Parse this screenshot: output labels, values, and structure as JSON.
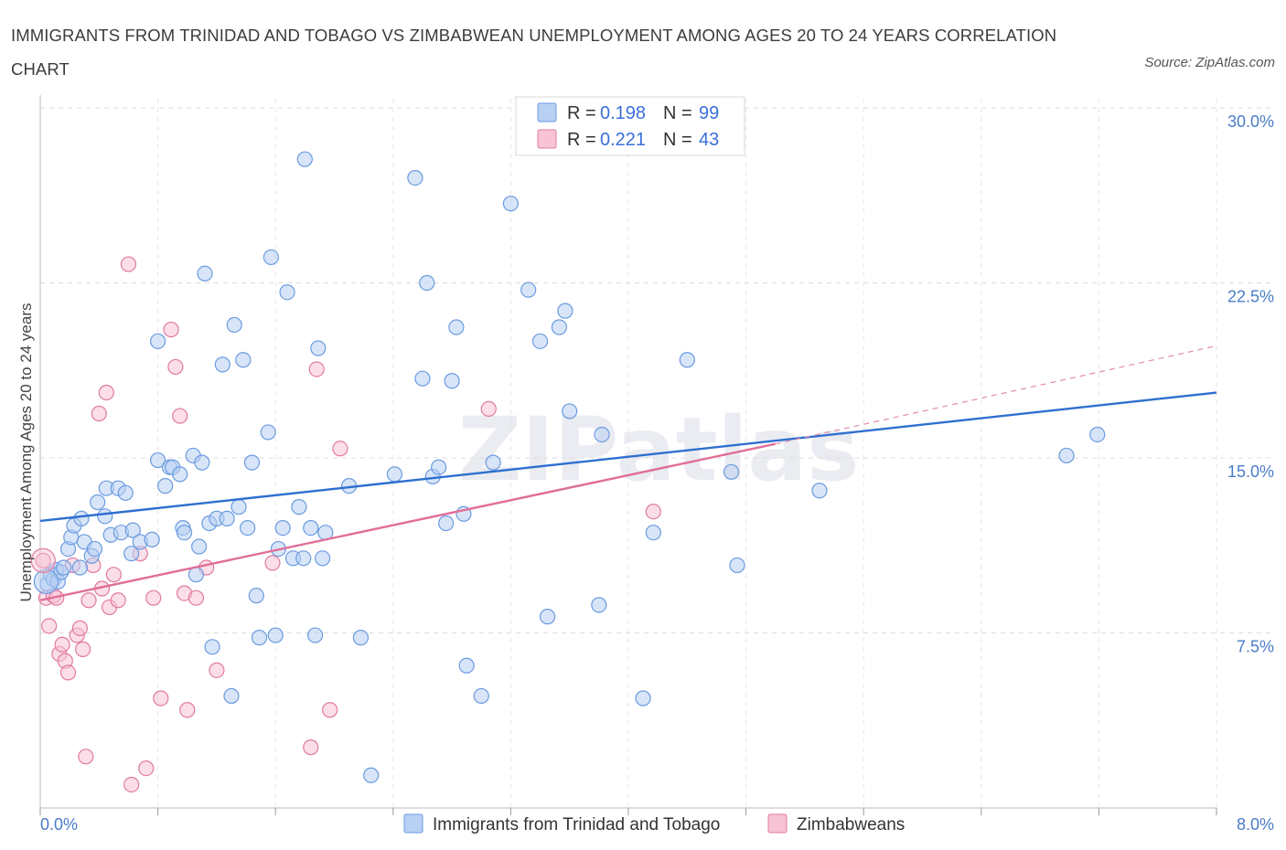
{
  "title": "IMMIGRANTS FROM TRINIDAD AND TOBAGO VS ZIMBABWEAN UNEMPLOYMENT AMONG AGES 20 TO 24 YEARS CORRELATION CHART",
  "source": "Source: ZipAtlas.com",
  "watermark": "ZIPatlas",
  "chart_data": {
    "type": "scatter",
    "ylabel": "Unemployment Among Ages 20 to 24 years",
    "xlim": [
      0,
      8
    ],
    "ylim": [
      0,
      30
    ],
    "yticks": [
      {
        "value": 7.5,
        "label": "7.5%"
      },
      {
        "value": 15,
        "label": "15.0%"
      },
      {
        "value": 22.5,
        "label": "22.5%"
      },
      {
        "value": 30,
        "label": "30.0%"
      }
    ],
    "xticks": [
      {
        "value": 0,
        "label": "0.0%"
      },
      {
        "value": 8,
        "label": "8.0%"
      }
    ],
    "grid": true,
    "legend_placement": "top-center",
    "series": [
      {
        "name": "Immigrants from Trinidad and Tobago",
        "color": "#6a9be0",
        "fill": "#b8d0f3",
        "r_label": "R =",
        "r_value": "0.198",
        "n_label": "N =",
        "n_value": "99",
        "trend": {
          "x0": 0,
          "y0": 12.3,
          "x1": 8,
          "y1": 17.8
        },
        "points": [
          [
            0.05,
            9.6
          ],
          [
            0.07,
            10.0
          ],
          [
            0.09,
            9.8
          ],
          [
            0.11,
            10.2
          ],
          [
            0.12,
            9.7
          ],
          [
            0.14,
            10.1
          ],
          [
            0.16,
            10.3
          ],
          [
            0.19,
            11.1
          ],
          [
            0.21,
            11.6
          ],
          [
            0.23,
            12.1
          ],
          [
            0.27,
            10.3
          ],
          [
            0.28,
            12.4
          ],
          [
            0.3,
            11.4
          ],
          [
            0.35,
            10.8
          ],
          [
            0.37,
            11.1
          ],
          [
            0.39,
            13.1
          ],
          [
            0.45,
            13.7
          ],
          [
            0.44,
            12.5
          ],
          [
            0.48,
            11.7
          ],
          [
            0.53,
            13.7
          ],
          [
            0.55,
            11.8
          ],
          [
            0.58,
            13.5
          ],
          [
            0.62,
            10.9
          ],
          [
            0.63,
            11.9
          ],
          [
            0.68,
            11.4
          ],
          [
            0.76,
            11.5
          ],
          [
            0.8,
            20.0
          ],
          [
            0.8,
            14.9
          ],
          [
            0.85,
            13.8
          ],
          [
            0.88,
            14.6
          ],
          [
            0.9,
            14.6
          ],
          [
            0.95,
            14.3
          ],
          [
            0.97,
            12.0
          ],
          [
            0.98,
            11.8
          ],
          [
            1.04,
            15.1
          ],
          [
            1.06,
            10.0
          ],
          [
            1.08,
            11.2
          ],
          [
            1.1,
            14.8
          ],
          [
            1.12,
            22.9
          ],
          [
            1.15,
            12.2
          ],
          [
            1.17,
            6.9
          ],
          [
            1.2,
            12.4
          ],
          [
            1.24,
            19.0
          ],
          [
            1.27,
            12.4
          ],
          [
            1.3,
            4.8
          ],
          [
            1.32,
            20.7
          ],
          [
            1.35,
            12.9
          ],
          [
            1.38,
            19.2
          ],
          [
            1.41,
            12.0
          ],
          [
            1.44,
            14.8
          ],
          [
            1.47,
            9.1
          ],
          [
            1.49,
            7.3
          ],
          [
            1.55,
            16.1
          ],
          [
            1.57,
            23.6
          ],
          [
            1.6,
            7.4
          ],
          [
            1.62,
            11.1
          ],
          [
            1.65,
            12.0
          ],
          [
            1.68,
            22.1
          ],
          [
            1.72,
            10.7
          ],
          [
            1.76,
            12.9
          ],
          [
            1.79,
            10.7
          ],
          [
            1.8,
            27.8
          ],
          [
            1.84,
            12.0
          ],
          [
            1.87,
            7.4
          ],
          [
            1.89,
            19.7
          ],
          [
            1.92,
            10.7
          ],
          [
            1.94,
            11.8
          ],
          [
            2.1,
            13.8
          ],
          [
            2.18,
            7.3
          ],
          [
            2.25,
            1.4
          ],
          [
            2.41,
            14.3
          ],
          [
            2.55,
            27.0
          ],
          [
            2.6,
            18.4
          ],
          [
            2.63,
            22.5
          ],
          [
            2.67,
            14.2
          ],
          [
            2.71,
            14.6
          ],
          [
            2.76,
            12.2
          ],
          [
            2.8,
            18.3
          ],
          [
            2.83,
            20.6
          ],
          [
            2.88,
            12.6
          ],
          [
            2.9,
            6.1
          ],
          [
            3.0,
            4.8
          ],
          [
            3.08,
            14.8
          ],
          [
            3.2,
            25.9
          ],
          [
            3.32,
            22.2
          ],
          [
            3.4,
            20.0
          ],
          [
            3.45,
            8.2
          ],
          [
            3.53,
            20.6
          ],
          [
            3.57,
            21.3
          ],
          [
            3.6,
            17.0
          ],
          [
            3.8,
            8.7
          ],
          [
            3.82,
            16.0
          ],
          [
            4.1,
            4.7
          ],
          [
            4.17,
            11.8
          ],
          [
            4.4,
            19.2
          ],
          [
            4.7,
            14.4
          ],
          [
            4.74,
            10.4
          ],
          [
            5.3,
            13.6
          ],
          [
            6.98,
            15.1
          ],
          [
            7.19,
            16.0
          ]
        ]
      },
      {
        "name": "Zimbabweans",
        "color": "#e07aa0",
        "fill": "#f7c3d5",
        "r_label": "R =",
        "r_value": "0.221",
        "n_label": "N =",
        "n_value": "43",
        "trend": {
          "x0": 0,
          "y0": 8.9,
          "x1": 5.0,
          "y1": 15.6
        },
        "trend_ext": {
          "x0": 5.0,
          "y0": 15.6,
          "x1": 8,
          "y1": 19.8
        },
        "points": [
          [
            0.02,
            10.6
          ],
          [
            0.04,
            9.0
          ],
          [
            0.06,
            7.8
          ],
          [
            0.09,
            9.1
          ],
          [
            0.11,
            9.0
          ],
          [
            0.13,
            6.6
          ],
          [
            0.15,
            7.0
          ],
          [
            0.17,
            6.3
          ],
          [
            0.19,
            5.8
          ],
          [
            0.22,
            10.4
          ],
          [
            0.25,
            7.4
          ],
          [
            0.27,
            7.7
          ],
          [
            0.29,
            6.8
          ],
          [
            0.31,
            2.2
          ],
          [
            0.33,
            8.9
          ],
          [
            0.36,
            10.4
          ],
          [
            0.4,
            16.9
          ],
          [
            0.42,
            9.4
          ],
          [
            0.45,
            17.8
          ],
          [
            0.47,
            8.6
          ],
          [
            0.5,
            10.0
          ],
          [
            0.53,
            8.9
          ],
          [
            0.6,
            23.3
          ],
          [
            0.62,
            1.0
          ],
          [
            0.68,
            10.9
          ],
          [
            0.72,
            1.7
          ],
          [
            0.77,
            9.0
          ],
          [
            0.82,
            4.7
          ],
          [
            0.89,
            20.5
          ],
          [
            0.92,
            18.9
          ],
          [
            0.95,
            16.8
          ],
          [
            0.98,
            9.2
          ],
          [
            1.0,
            4.2
          ],
          [
            1.06,
            9.0
          ],
          [
            1.13,
            10.3
          ],
          [
            1.2,
            5.9
          ],
          [
            1.58,
            10.5
          ],
          [
            1.84,
            2.6
          ],
          [
            1.88,
            18.8
          ],
          [
            1.97,
            4.2
          ],
          [
            2.04,
            15.4
          ],
          [
            3.05,
            17.1
          ],
          [
            4.17,
            12.7
          ]
        ]
      }
    ]
  }
}
